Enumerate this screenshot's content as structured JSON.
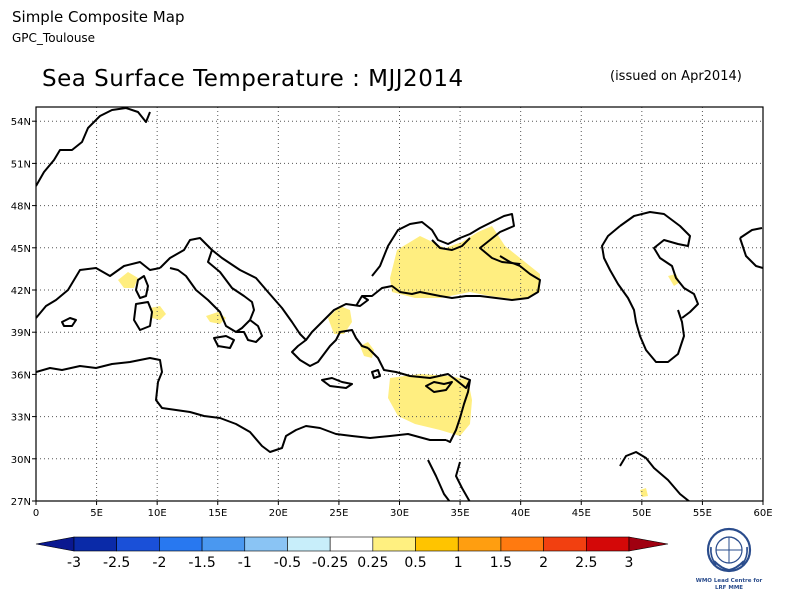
{
  "header": {
    "title": "Simple Composite Map",
    "subtitle": "GPC_Toulouse"
  },
  "map": {
    "title": "Sea Surface Temperature : MJJ2014",
    "issued": "(issued on Apr2014)",
    "lon_labels": [
      "0",
      "5E",
      "10E",
      "15E",
      "20E",
      "25E",
      "30E",
      "35E",
      "40E",
      "45E",
      "50E",
      "55E",
      "60E"
    ],
    "lat_labels": [
      "27N",
      "30N",
      "33N",
      "36N",
      "39N",
      "42N",
      "45N",
      "48N",
      "51N",
      "54N"
    ],
    "anomaly_fill_color": "#ffee80",
    "coastline_color": "#000000"
  },
  "colorbar": {
    "labels": [
      "-3",
      "-2.5",
      "-2",
      "-1.5",
      "-1",
      "-0.5",
      "-0.25",
      "0.25",
      "0.5",
      "1",
      "1.5",
      "2",
      "2.5",
      "3"
    ],
    "colors": [
      "#0a2aa8",
      "#1a50d8",
      "#2878f0",
      "#4a98f0",
      "#8ac4f4",
      "#c8eefa",
      "#ffffff",
      "#fff080",
      "#ffc400",
      "#ff9e10",
      "#ff7a10",
      "#f24010",
      "#d40808"
    ],
    "under_color": "#0a1890",
    "over_color": "#a00010"
  },
  "logo": {
    "name": "wmo-logo",
    "text_line1": "WMO Lead Centre for",
    "text_line2": "LRF MME"
  }
}
